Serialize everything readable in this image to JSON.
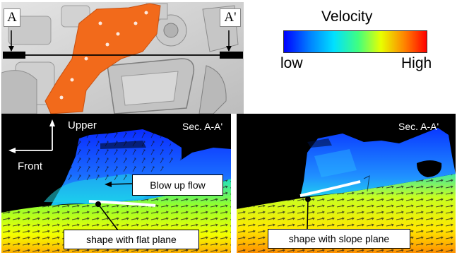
{
  "figure": {
    "top_panel": {
      "marker_left": "A",
      "marker_right": "A'"
    },
    "legend": {
      "title": "Velocity",
      "low_label": "low",
      "high_label": "High",
      "gradient_colors": [
        "#0000ff",
        "#00a0ff",
        "#00ffff",
        "#40ff80",
        "#ffff00",
        "#ff8000",
        "#ff0000"
      ]
    },
    "left_panel": {
      "section_label": "Sec. A-A'",
      "axis_up_label": "Upper",
      "axis_left_label": "Front",
      "callout_flow": "Blow up flow",
      "callout_shape": "shape with flat plane"
    },
    "right_panel": {
      "section_label": "Sec. A-A'",
      "callout_shape": "shape with slope plane"
    }
  }
}
